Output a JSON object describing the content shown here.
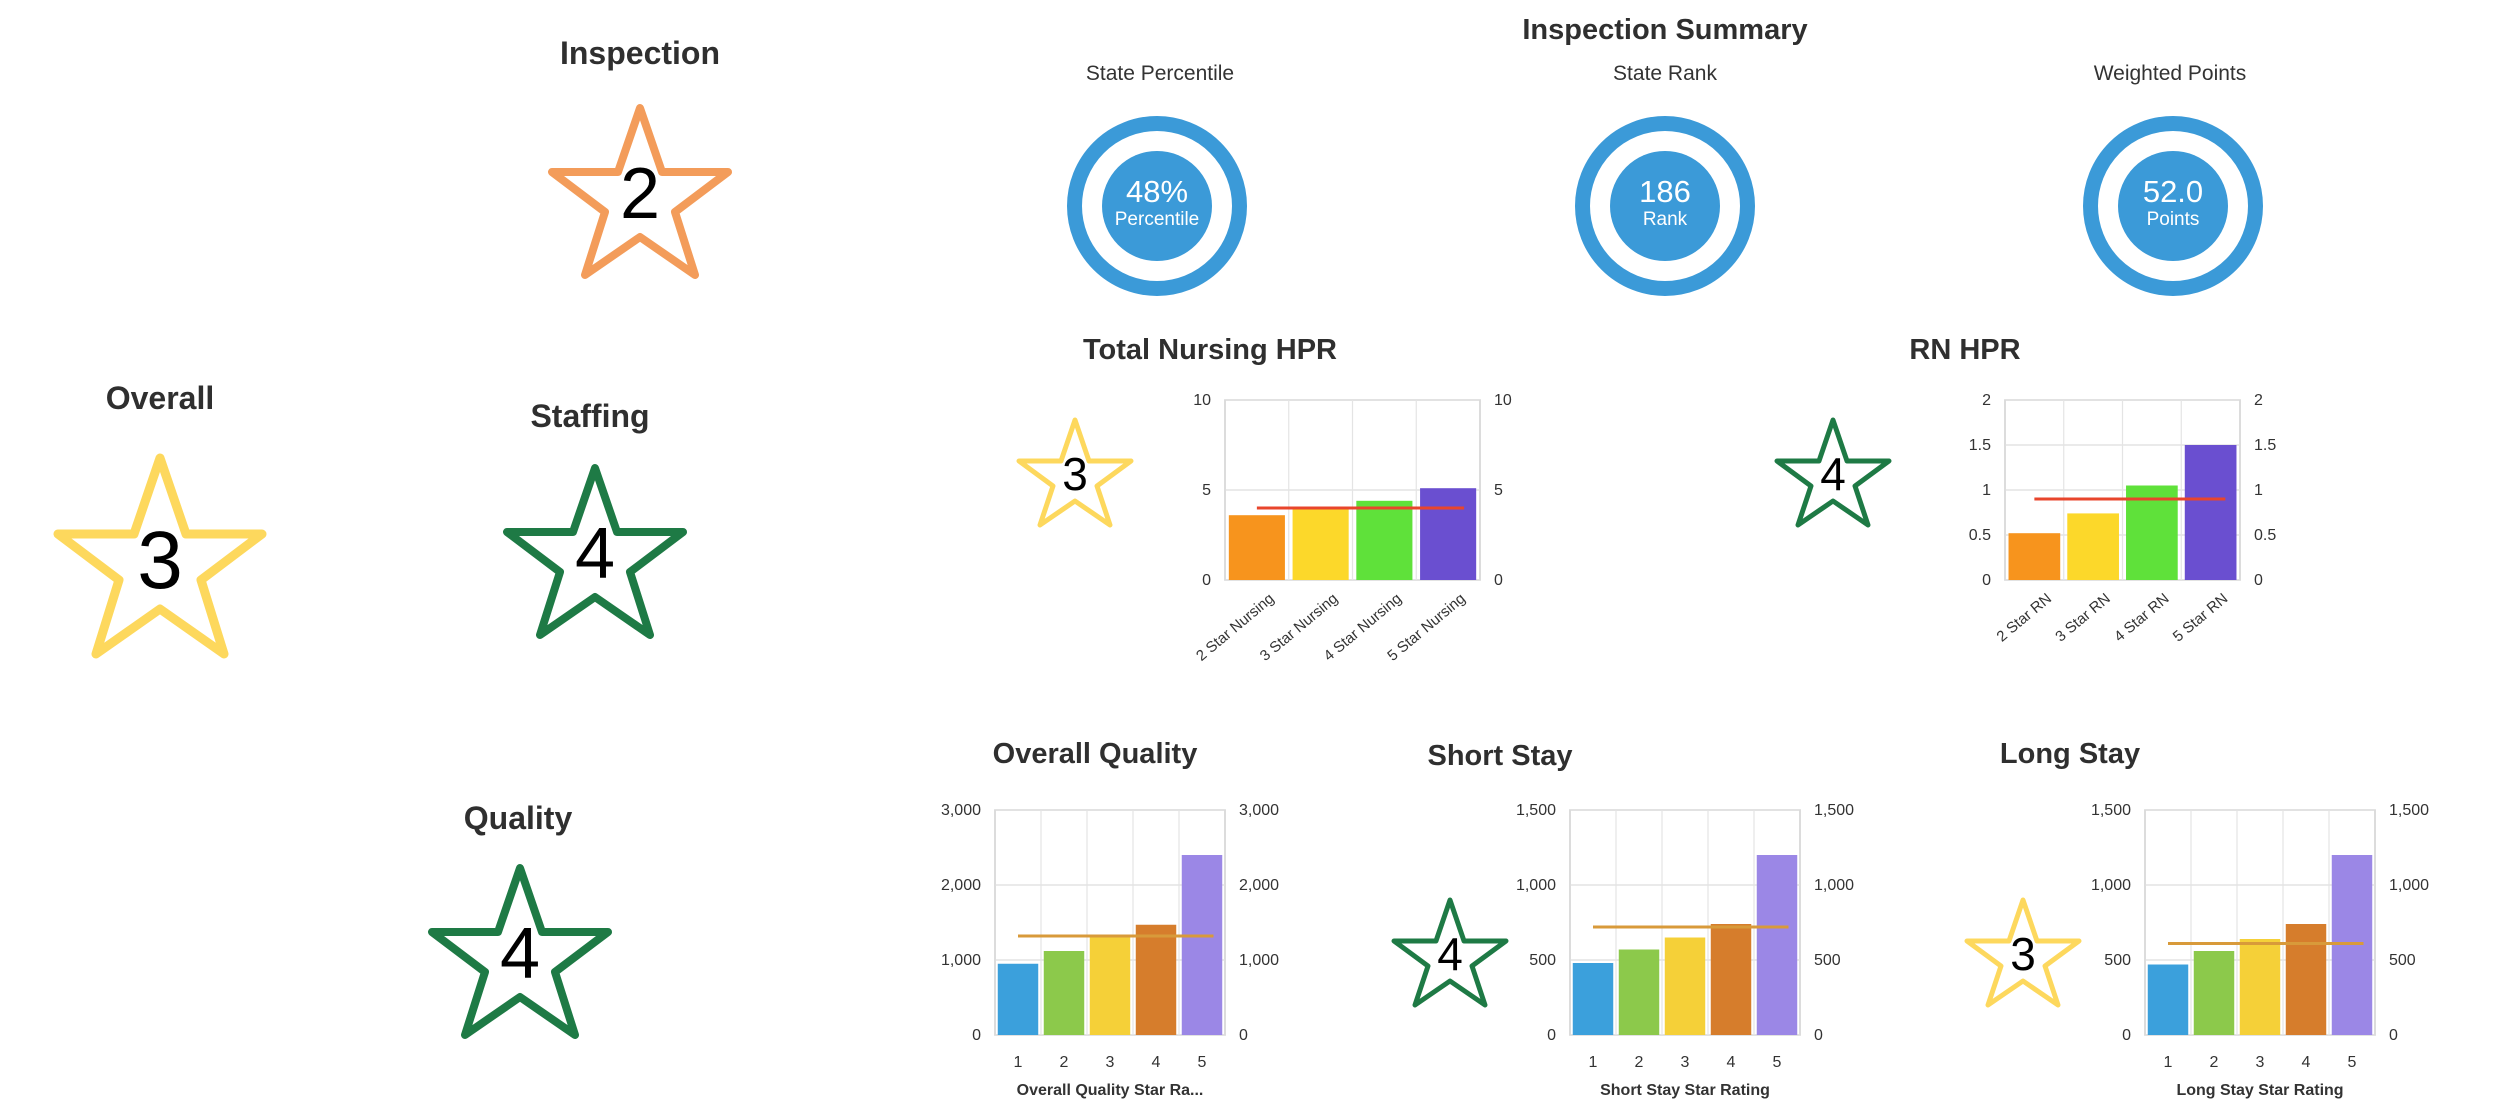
{
  "ratings": {
    "inspection": {
      "label": "Inspection",
      "value": "2",
      "color": "#f39c5a"
    },
    "overall": {
      "label": "Overall",
      "value": "3",
      "color": "#fdd85d"
    },
    "staffing": {
      "label": "Staffing",
      "value": "4",
      "color": "#1e7a45"
    },
    "quality": {
      "label": "Quality",
      "value": "4",
      "color": "#1e7a45"
    }
  },
  "summary": {
    "title": "Inspection Summary",
    "gauges": [
      {
        "label": "State Percentile",
        "value": "48%",
        "unit": "Percentile"
      },
      {
        "label": "State Rank",
        "value": "186",
        "unit": "Rank"
      },
      {
        "label": "Weighted Points",
        "value": "52.0",
        "unit": "Points"
      }
    ]
  },
  "panels": {
    "total_nursing": {
      "title": "Total Nursing HPR",
      "star": "3",
      "star_color": "#fdd85d"
    },
    "rn": {
      "title": "RN HPR",
      "star": "4",
      "star_color": "#1e7a45"
    },
    "overall_quality": {
      "title": "Overall Quality",
      "xlabel": "Overall Quality Star Ra..."
    },
    "short_stay": {
      "title": "Short Stay",
      "star": "4",
      "star_color": "#1e7a45",
      "xlabel": "Short Stay Star Rating"
    },
    "long_stay": {
      "title": "Long Stay",
      "star": "3",
      "star_color": "#fdd85d",
      "xlabel": "Long Stay Star Rating"
    }
  },
  "chart_data": [
    {
      "id": "total_nursing",
      "type": "bar",
      "title": "Total Nursing HPR",
      "categories": [
        "2 Star Nursing",
        "3 Star Nursing",
        "4 Star Nursing",
        "5 Star Nursing"
      ],
      "values": [
        3.6,
        4.0,
        4.4,
        5.1
      ],
      "colors": [
        "#f7941d",
        "#fcd82a",
        "#5fe13a",
        "#6a4fd0"
      ],
      "reference": 4.0,
      "reference_color": "#e8452c",
      "ylim": [
        0,
        10
      ],
      "yticks": [
        "0",
        "5",
        "10"
      ],
      "ytick_values": [
        0,
        5,
        10
      ],
      "grid": true
    },
    {
      "id": "rn",
      "type": "bar",
      "title": "RN HPR",
      "categories": [
        "2 Star RN",
        "3 Star RN",
        "4 Star RN",
        "5 Star RN"
      ],
      "values": [
        0.52,
        0.74,
        1.05,
        1.5
      ],
      "colors": [
        "#f7941d",
        "#fcd82a",
        "#5fe13a",
        "#6a4fd0"
      ],
      "reference": 0.9,
      "reference_color": "#e8452c",
      "ylim": [
        0,
        2
      ],
      "yticks": [
        "0",
        "0.5",
        "1",
        "1.5",
        "2"
      ],
      "ytick_values": [
        0,
        0.5,
        1,
        1.5,
        2
      ],
      "grid": true
    },
    {
      "id": "overall_quality",
      "type": "bar",
      "title": "Overall Quality",
      "categories": [
        "1",
        "2",
        "3",
        "4",
        "5"
      ],
      "values": [
        950,
        1120,
        1320,
        1470,
        2400
      ],
      "colors": [
        "#3ba0dc",
        "#8cc94b",
        "#f5d038",
        "#d67d2c",
        "#9b87e6"
      ],
      "reference": 1320,
      "reference_color": "#d89a3a",
      "xlabel": "Overall Quality Star Ra...",
      "ylim": [
        0,
        3000
      ],
      "yticks": [
        "0",
        "1,000",
        "2,000",
        "3,000"
      ],
      "ytick_values": [
        0,
        1000,
        2000,
        3000
      ],
      "grid": true
    },
    {
      "id": "short_stay",
      "type": "bar",
      "title": "Short Stay",
      "categories": [
        "1",
        "2",
        "3",
        "4",
        "5"
      ],
      "values": [
        480,
        570,
        650,
        740,
        1200
      ],
      "colors": [
        "#3ba0dc",
        "#8cc94b",
        "#f5d038",
        "#d67d2c",
        "#9b87e6"
      ],
      "reference": 720,
      "reference_color": "#d89a3a",
      "xlabel": "Short Stay Star Rating",
      "ylim": [
        0,
        1500
      ],
      "yticks": [
        "0",
        "500",
        "1,000",
        "1,500"
      ],
      "ytick_values": [
        0,
        500,
        1000,
        1500
      ],
      "grid": true
    },
    {
      "id": "long_stay",
      "type": "bar",
      "title": "Long Stay",
      "categories": [
        "1",
        "2",
        "3",
        "4",
        "5"
      ],
      "values": [
        470,
        560,
        640,
        740,
        1200
      ],
      "colors": [
        "#3ba0dc",
        "#8cc94b",
        "#f5d038",
        "#d67d2c",
        "#9b87e6"
      ],
      "reference": 610,
      "reference_color": "#d89a3a",
      "xlabel": "Long Stay Star Rating",
      "ylim": [
        0,
        1500
      ],
      "yticks": [
        "0",
        "500",
        "1,000",
        "1,500"
      ],
      "ytick_values": [
        0,
        500,
        1000,
        1500
      ],
      "grid": true
    }
  ]
}
